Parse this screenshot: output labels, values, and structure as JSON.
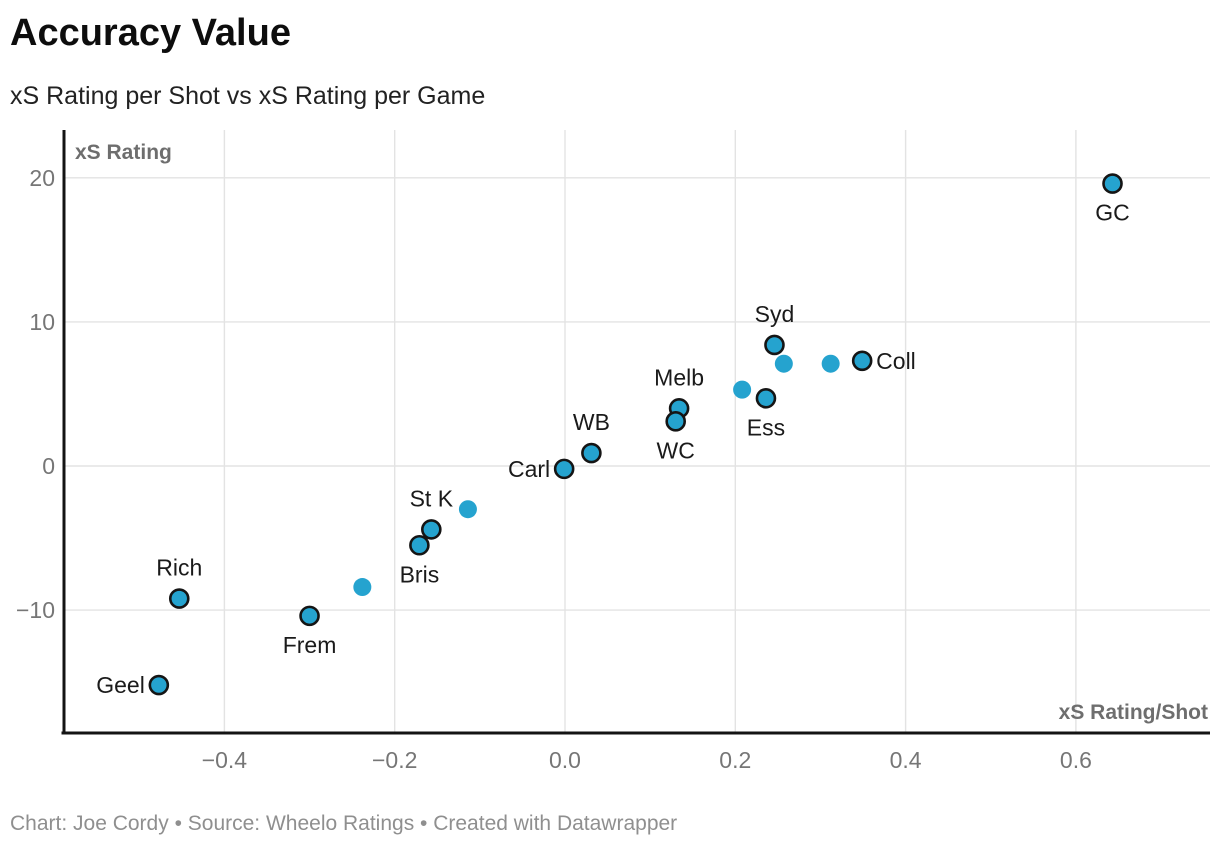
{
  "header": {
    "title": "Accuracy Value",
    "subtitle": "xS Rating per Shot vs xS Rating per Game"
  },
  "footer": {
    "text": "Chart: Joe Cordy • Source: Wheelo Ratings • Created with Datawrapper"
  },
  "colors": {
    "point_fill": "#25a3cf",
    "point_stroke": "#151515",
    "grid": "#e3e3e3",
    "axis": "#141414",
    "tick_text": "#767676",
    "axis_title_text": "#6e6e6e",
    "point_label_text": "#1a1a1a"
  },
  "chart_data": {
    "type": "scatter",
    "title": "Accuracy Value",
    "subtitle": "xS Rating per Shot vs xS Rating per Game",
    "xlabel": "xS Rating/Shot",
    "ylabel": "xS Rating",
    "xlim": [
      -0.59,
      0.76
    ],
    "ylim": [
      -18.5,
      23.2
    ],
    "grid": true,
    "legend": "none",
    "x_axis_ticks": [
      {
        "value": -0.4,
        "label": "−0.4"
      },
      {
        "value": -0.2,
        "label": "−0.2"
      },
      {
        "value": 0.0,
        "label": "0.0"
      },
      {
        "value": 0.2,
        "label": "0.2"
      },
      {
        "value": 0.4,
        "label": "0.4"
      },
      {
        "value": 0.6,
        "label": "0.6"
      }
    ],
    "y_axis_ticks": [
      {
        "value": 20,
        "label": "20"
      },
      {
        "value": 10,
        "label": "10"
      },
      {
        "value": 0,
        "label": "0"
      },
      {
        "value": -10,
        "label": "−10"
      }
    ],
    "points": [
      {
        "label": "GC",
        "x": 0.643,
        "y": 19.6,
        "label_pos": "below"
      },
      {
        "label": "Syd",
        "x": 0.246,
        "y": 8.4,
        "label_pos": "above"
      },
      {
        "label": null,
        "x": 0.257,
        "y": 7.1,
        "label_pos": null
      },
      {
        "label": null,
        "x": 0.312,
        "y": 7.1,
        "label_pos": null
      },
      {
        "label": "Coll",
        "x": 0.349,
        "y": 7.3,
        "label_pos": "right"
      },
      {
        "label": null,
        "x": 0.208,
        "y": 5.3,
        "label_pos": null
      },
      {
        "label": "Ess",
        "x": 0.236,
        "y": 4.7,
        "label_pos": "below"
      },
      {
        "label": "Melb",
        "x": 0.134,
        "y": 4.0,
        "label_pos": "above"
      },
      {
        "label": "WC",
        "x": 0.13,
        "y": 3.1,
        "label_pos": "below"
      },
      {
        "label": "WB",
        "x": 0.031,
        "y": 0.9,
        "label_pos": "above"
      },
      {
        "label": "Carl",
        "x": -0.001,
        "y": -0.2,
        "label_pos": "left"
      },
      {
        "label": null,
        "x": -0.114,
        "y": -3.0,
        "label_pos": null
      },
      {
        "label": "St K",
        "x": -0.157,
        "y": -4.4,
        "label_pos": "above"
      },
      {
        "label": "Bris",
        "x": -0.171,
        "y": -5.5,
        "label_pos": "below"
      },
      {
        "label": null,
        "x": -0.238,
        "y": -8.4,
        "label_pos": null
      },
      {
        "label": "Rich",
        "x": -0.453,
        "y": -9.2,
        "label_pos": "above"
      },
      {
        "label": "Frem",
        "x": -0.3,
        "y": -10.4,
        "label_pos": "below"
      },
      {
        "label": "Geel",
        "x": -0.477,
        "y": -15.2,
        "label_pos": "left"
      }
    ]
  }
}
